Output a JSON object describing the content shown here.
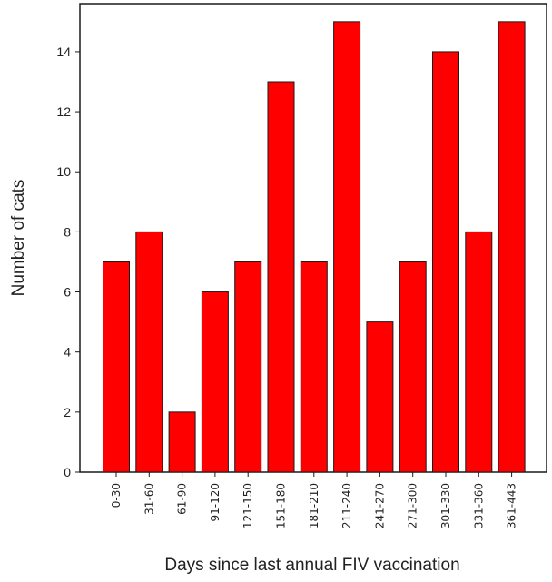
{
  "chart_data": {
    "type": "bar",
    "xlabel": "Days since last annual FIV vaccination",
    "ylabel": "Number of cats",
    "categories": [
      "0-30",
      "31-60",
      "61-90",
      "91-120",
      "121-150",
      "151-180",
      "181-210",
      "211-240",
      "241-270",
      "271-300",
      "301-330",
      "331-360",
      "361-443"
    ],
    "values": [
      7,
      8,
      2,
      6,
      7,
      13,
      7,
      15,
      5,
      7,
      14,
      8,
      15
    ],
    "ylim": [
      0,
      15.6
    ],
    "yticks": [
      0,
      2,
      4,
      6,
      8,
      10,
      12,
      14
    ],
    "grid": false,
    "legend": "none",
    "colors": {
      "bar_fill": "#ff0000",
      "bar_stroke": "#1a1a1a",
      "axis": "#1a1a1a"
    }
  }
}
